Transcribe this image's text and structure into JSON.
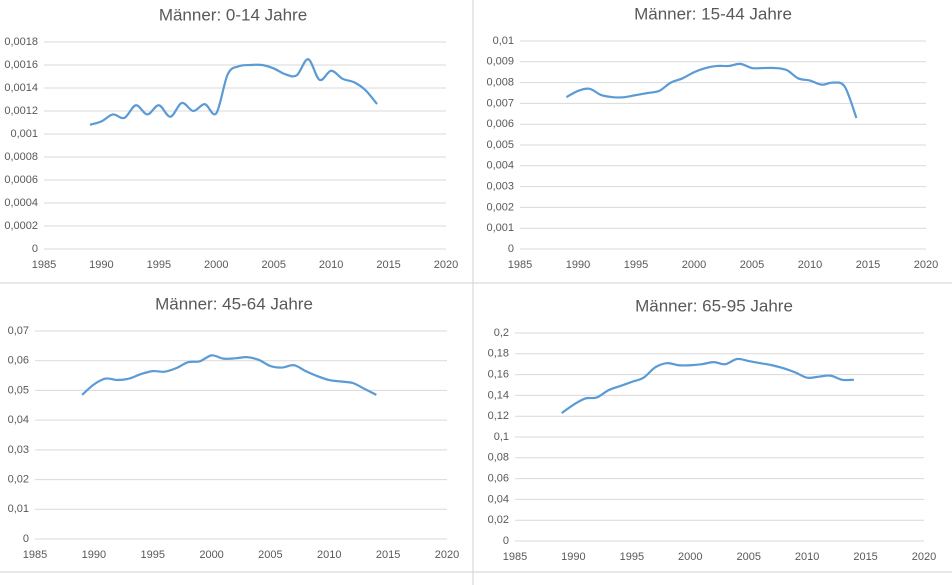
{
  "chart_data": [
    {
      "type": "line",
      "title": "Männer: 0-14 Jahre",
      "color": "#5b9bd5",
      "x": [
        1989,
        1990,
        1991,
        1992,
        1993,
        1994,
        1995,
        1996,
        1997,
        1998,
        1999,
        2000,
        2001,
        2002,
        2003,
        2004,
        2005,
        2006,
        2007,
        2008,
        2009,
        2010,
        2011,
        2012,
        2013,
        2014
      ],
      "values": [
        0.00108,
        0.00111,
        0.00117,
        0.00114,
        0.00125,
        0.00117,
        0.00125,
        0.00115,
        0.00127,
        0.0012,
        0.00126,
        0.00118,
        0.00152,
        0.00159,
        0.0016,
        0.0016,
        0.00157,
        0.00152,
        0.00151,
        0.00165,
        0.00147,
        0.00155,
        0.00148,
        0.00145,
        0.00138,
        0.00126
      ],
      "xlim": [
        1985,
        2020
      ],
      "xticks": [
        1985,
        1990,
        1995,
        2000,
        2005,
        2010,
        2015,
        2020
      ],
      "ylim": [
        0,
        0.0018
      ],
      "yticks": [
        0,
        {
          "value": 0.0002,
          "label": "0,0002"
        },
        {
          "value": 0.0004,
          "label": "0,0004"
        },
        {
          "value": 0.0006,
          "label": "0,0006"
        },
        {
          "value": 0.0008,
          "label": "0,0008"
        },
        {
          "value": 0.001,
          "label": "0,001"
        },
        {
          "value": 0.0012,
          "label": "0,0012"
        },
        {
          "value": 0.0014,
          "label": "0,0014"
        },
        {
          "value": 0.0016,
          "label": "0,0016"
        },
        {
          "value": 0.0018,
          "label": "0,0018"
        }
      ],
      "grid": true
    },
    {
      "type": "line",
      "title": "Männer: 15-44 Jahre",
      "color": "#5b9bd5",
      "x": [
        1989,
        1990,
        1991,
        1992,
        1993,
        1994,
        1995,
        1996,
        1997,
        1998,
        1999,
        2000,
        2001,
        2002,
        2003,
        2004,
        2005,
        2006,
        2007,
        2008,
        2009,
        2010,
        2011,
        2012,
        2013,
        2014
      ],
      "values": [
        0.0073,
        0.0076,
        0.0077,
        0.0074,
        0.0073,
        0.0073,
        0.0074,
        0.0075,
        0.0076,
        0.008,
        0.0082,
        0.0085,
        0.0087,
        0.0088,
        0.0088,
        0.0089,
        0.0087,
        0.0087,
        0.0087,
        0.0086,
        0.0082,
        0.0081,
        0.0079,
        0.008,
        0.0078,
        0.0063
      ],
      "xlim": [
        1985,
        2020
      ],
      "xticks": [
        1985,
        1990,
        1995,
        2000,
        2005,
        2010,
        2015,
        2020
      ],
      "ylim": [
        0,
        0.01
      ],
      "yticks": [
        0,
        {
          "value": 0.001,
          "label": "0,001"
        },
        {
          "value": 0.002,
          "label": "0,002"
        },
        {
          "value": 0.003,
          "label": "0,003"
        },
        {
          "value": 0.004,
          "label": "0,004"
        },
        {
          "value": 0.005,
          "label": "0,005"
        },
        {
          "value": 0.006,
          "label": "0,006"
        },
        {
          "value": 0.007,
          "label": "0,007"
        },
        {
          "value": 0.008,
          "label": "0,008"
        },
        {
          "value": 0.009,
          "label": "0,009"
        },
        {
          "value": 0.01,
          "label": "0,01"
        }
      ],
      "grid": true
    },
    {
      "type": "line",
      "title": "Männer: 45-64 Jahre",
      "color": "#5b9bd5",
      "x": [
        1989,
        1990,
        1991,
        1992,
        1993,
        1994,
        1995,
        1996,
        1997,
        1998,
        1999,
        2000,
        2001,
        2002,
        2003,
        2004,
        2005,
        2006,
        2007,
        2008,
        2009,
        2010,
        2011,
        2012,
        2013,
        2014
      ],
      "values": [
        0.0485,
        0.052,
        0.054,
        0.0535,
        0.054,
        0.0555,
        0.0565,
        0.0563,
        0.0575,
        0.0595,
        0.0598,
        0.0618,
        0.0607,
        0.0608,
        0.0612,
        0.0603,
        0.0582,
        0.0577,
        0.0585,
        0.0565,
        0.0548,
        0.0535,
        0.053,
        0.0525,
        0.0505,
        0.0485
      ],
      "xlim": [
        1985,
        2020
      ],
      "xticks": [
        1985,
        1990,
        1995,
        2000,
        2005,
        2010,
        2015,
        2020
      ],
      "ylim": [
        0,
        0.07
      ],
      "yticks": [
        0,
        {
          "value": 0.01,
          "label": "0,01"
        },
        {
          "value": 0.02,
          "label": "0,02"
        },
        {
          "value": 0.03,
          "label": "0,03"
        },
        {
          "value": 0.04,
          "label": "0,04"
        },
        {
          "value": 0.05,
          "label": "0,05"
        },
        {
          "value": 0.06,
          "label": "0,06"
        },
        {
          "value": 0.07,
          "label": "0,07"
        }
      ],
      "grid": true
    },
    {
      "type": "line",
      "title": "Männer: 65-95 Jahre",
      "color": "#5b9bd5",
      "x": [
        1989,
        1990,
        1991,
        1992,
        1993,
        1994,
        1995,
        1996,
        1997,
        1998,
        1999,
        2000,
        2001,
        2002,
        2003,
        2004,
        2005,
        2006,
        2007,
        2008,
        2009,
        2010,
        2011,
        2012,
        2013,
        2014
      ],
      "values": [
        0.123,
        0.131,
        0.137,
        0.138,
        0.145,
        0.149,
        0.153,
        0.157,
        0.167,
        0.171,
        0.169,
        0.169,
        0.17,
        0.172,
        0.17,
        0.175,
        0.173,
        0.171,
        0.169,
        0.166,
        0.162,
        0.157,
        0.158,
        0.159,
        0.155,
        0.155
      ],
      "xlim": [
        1985,
        2020
      ],
      "xticks": [
        1985,
        1990,
        1995,
        2000,
        2005,
        2010,
        2015,
        2020
      ],
      "ylim": [
        0,
        0.2
      ],
      "yticks": [
        0,
        {
          "value": 0.02,
          "label": "0,02"
        },
        {
          "value": 0.04,
          "label": "0,04"
        },
        {
          "value": 0.06,
          "label": "0,06"
        },
        {
          "value": 0.08,
          "label": "0,08"
        },
        {
          "value": 0.1,
          "label": "0,1"
        },
        {
          "value": 0.12,
          "label": "0,12"
        },
        {
          "value": 0.14,
          "label": "0,14"
        },
        {
          "value": 0.16,
          "label": "0,16"
        },
        {
          "value": 0.18,
          "label": "0,18"
        },
        {
          "value": 0.2,
          "label": "0,2"
        }
      ],
      "grid": true
    }
  ]
}
